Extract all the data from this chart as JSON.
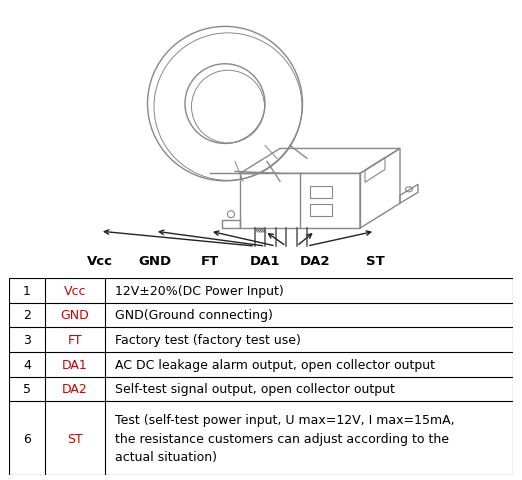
{
  "table_rows": [
    {
      "num": "1",
      "pin": "Vcc",
      "desc": "12V±20%(DC Power Input)"
    },
    {
      "num": "2",
      "pin": "GND",
      "desc": "GND(Ground connecting)"
    },
    {
      "num": "3",
      "pin": "FT",
      "desc": "Factory test (factory test use)"
    },
    {
      "num": "4",
      "pin": "DA1",
      "desc": "AC DC leakage alarm output, open collector output"
    },
    {
      "num": "5",
      "pin": "DA2",
      "desc": "Self-test signal output, open collector output"
    },
    {
      "num": "6",
      "pin": "ST",
      "desc": "Test (self-test power input, U max=12V, I max=15mA,\nthe resistance customers can adjust according to the\nactual situation)"
    }
  ],
  "pin_labels": [
    "Vcc",
    "GND",
    "FT",
    "DA1",
    "DA2",
    "ST"
  ],
  "fig_bg": "#ffffff",
  "border_color": "#000000",
  "text_color": "#000000",
  "pin_color": "#cc0000",
  "font_size": 9,
  "lc": "#888888",
  "lw": 1.0
}
